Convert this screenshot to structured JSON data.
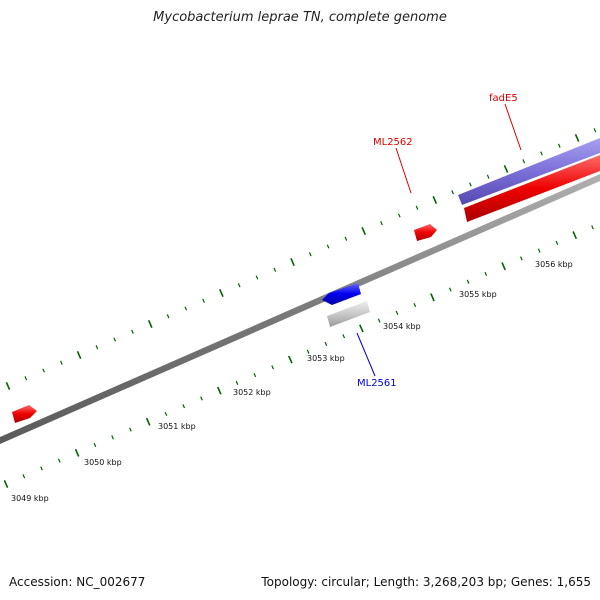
{
  "title": "Mycobacterium leprae TN, complete genome",
  "footer": {
    "accession": "Accession: NC_002677",
    "stats": "Topology: circular; Length: 3,268,203 bp; Genes: 1,655"
  },
  "scale_labels": [
    "3049 kbp",
    "3050 kbp",
    "3051 kbp",
    "3052 kbp",
    "3053 kbp",
    "3054 kbp",
    "3055 kbp",
    "3056 kbp"
  ],
  "genes": [
    {
      "name": "fadE5",
      "strand": "forward",
      "color": "#dd0000",
      "kind": "gene"
    },
    {
      "name": "ML2562",
      "strand": "forward",
      "color": "#dd0000",
      "kind": "gene"
    },
    {
      "name": "ML2561",
      "strand": "reverse",
      "color": "#0000cc",
      "kind": "gene"
    }
  ],
  "colors": {
    "backbone": "#808080",
    "forward_gene": "#ee0000",
    "reverse_gene": "#0000ee",
    "cds_band": "#7b6fd8",
    "gray_band": "#c8c8c8",
    "tick": "#006400"
  }
}
